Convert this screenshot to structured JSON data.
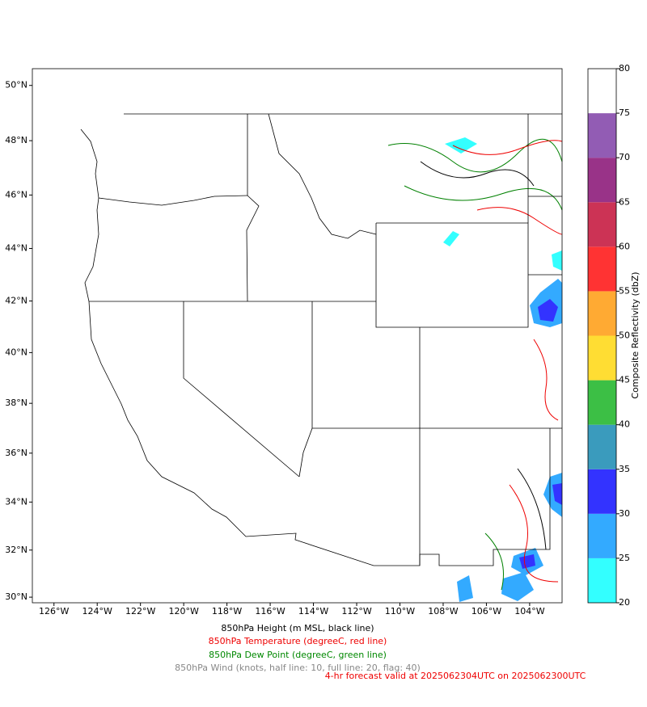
{
  "map": {
    "extent": {
      "lon": [
        -127,
        -102.5
      ],
      "lat": [
        29.76,
        50.6
      ]
    },
    "lon_ticks": [
      {
        "value": -126,
        "label": "126°W"
      },
      {
        "value": -124,
        "label": "124°W"
      },
      {
        "value": -122,
        "label": "122°W"
      },
      {
        "value": -120,
        "label": "120°W"
      },
      {
        "value": -118,
        "label": "118°W"
      },
      {
        "value": -116,
        "label": "116°W"
      },
      {
        "value": -114,
        "label": "114°W"
      },
      {
        "value": -112,
        "label": "112°W"
      },
      {
        "value": -110,
        "label": "110°W"
      },
      {
        "value": -108,
        "label": "108°W"
      },
      {
        "value": -106,
        "label": "106°W"
      },
      {
        "value": -104,
        "label": "104°W"
      }
    ],
    "lat_ticks": [
      {
        "value": 30,
        "label": "30°N"
      },
      {
        "value": 32,
        "label": "32°N"
      },
      {
        "value": 34,
        "label": "34°N"
      },
      {
        "value": 36,
        "label": "36°N"
      },
      {
        "value": 38,
        "label": "38°N"
      },
      {
        "value": 40,
        "label": "40°N"
      },
      {
        "value": 42,
        "label": "42°N"
      },
      {
        "value": 44,
        "label": "44°N"
      },
      {
        "value": 46,
        "label": "46°N"
      },
      {
        "value": 48,
        "label": "48°N"
      },
      {
        "value": 50,
        "label": "50°N"
      }
    ]
  },
  "colorbar": {
    "label": "Composite Reflectivity (dbZ)",
    "lim": [
      20,
      80
    ],
    "ticks": [
      20,
      25,
      30,
      35,
      40,
      45,
      50,
      55,
      60,
      65,
      70,
      75,
      80
    ],
    "colors": [
      "#33ffff",
      "#33aaff",
      "#3333ff",
      "#3a9bbd",
      "#3cbf45",
      "#ffdd33",
      "#ffaa33",
      "#ff3333",
      "#cc3355",
      "#993388",
      "#925cb4",
      "#ffffff"
    ]
  },
  "captions": [
    "850hPa Height (m MSL, black line)",
    "850hPa Temperature (degreeC, red line)",
    "850hPa Dew Point (degreeC, green line)",
    "850hPa Wind (knots, half line: 10, full line: 20, flag: 40)",
    "4-hr forecast valid at 2025062304UTC on 2025062300UTC"
  ]
}
